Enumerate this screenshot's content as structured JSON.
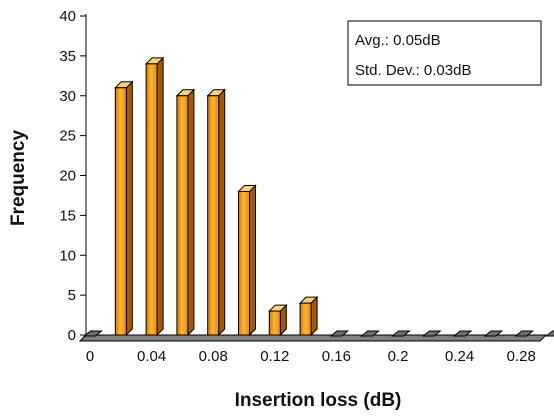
{
  "chart_data": {
    "type": "bar",
    "title": "",
    "xlabel": "Insertion loss (dB)",
    "ylabel": "Frequency",
    "categories": [
      0,
      0.02,
      0.04,
      0.06,
      0.08,
      0.1,
      0.12,
      0.14,
      0.16,
      0.18,
      0.2,
      0.22,
      0.24,
      0.26,
      0.28,
      0.3
    ],
    "values": [
      0,
      31,
      34,
      30,
      30,
      18,
      3,
      4,
      0,
      0,
      0,
      0,
      0,
      0,
      0,
      0
    ],
    "ylim": [
      0,
      40
    ],
    "yticks": [
      "0",
      "5",
      "10",
      "15",
      "20",
      "25",
      "30",
      "35",
      "40"
    ],
    "xticks": [
      "0",
      "0.04",
      "0.08",
      "0.12",
      "0.16",
      "0.2",
      "0.24",
      "0.28"
    ],
    "grid": false,
    "legend": "none",
    "bar_color": "#f7a21b",
    "bar_outline": "#000000",
    "floor_color": "#808080",
    "annotation": {
      "placement": "top-right",
      "lines": [
        "Avg.: 0.05dB",
        "Std. Dev.: 0.03dB"
      ]
    }
  }
}
